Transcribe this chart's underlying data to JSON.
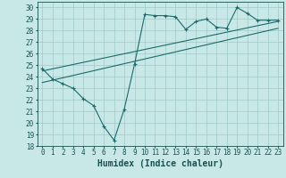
{
  "title": "",
  "xlabel": "Humidex (Indice chaleur)",
  "ylabel": "",
  "xlim": [
    -0.5,
    23.5
  ],
  "ylim": [
    18,
    30.5
  ],
  "yticks": [
    18,
    19,
    20,
    21,
    22,
    23,
    24,
    25,
    26,
    27,
    28,
    29,
    30
  ],
  "xticks": [
    0,
    1,
    2,
    3,
    4,
    5,
    6,
    7,
    8,
    9,
    10,
    11,
    12,
    13,
    14,
    15,
    16,
    17,
    18,
    19,
    20,
    21,
    22,
    23
  ],
  "bg_color": "#c8e8e8",
  "grid_color": "#a0c8c8",
  "line_color": "#1a6b6b",
  "line1_x": [
    0,
    1,
    2,
    3,
    4,
    5,
    6,
    7,
    8,
    9,
    10,
    11,
    12,
    13,
    14,
    15,
    16,
    17,
    18,
    19,
    20,
    21,
    22,
    23
  ],
  "line1_y": [
    24.7,
    23.8,
    23.4,
    23.0,
    22.1,
    21.5,
    19.7,
    18.5,
    21.2,
    25.1,
    29.4,
    29.3,
    29.3,
    29.2,
    28.1,
    28.8,
    29.0,
    28.3,
    28.2,
    30.0,
    29.5,
    28.9,
    28.9,
    28.9
  ],
  "line2_x": [
    0,
    23
  ],
  "line2_y": [
    23.5,
    28.2
  ],
  "line3_x": [
    0,
    23
  ],
  "line3_y": [
    24.5,
    28.8
  ],
  "font_color": "#1a5050",
  "tick_fontsize": 5.5,
  "xlabel_fontsize": 7.0
}
